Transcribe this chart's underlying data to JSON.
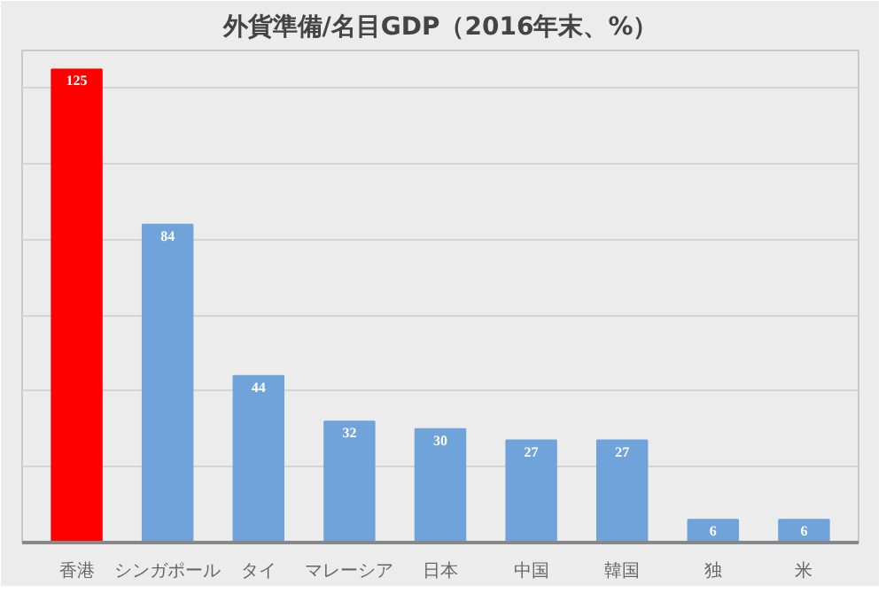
{
  "chart_data": {
    "type": "bar",
    "title": "外貨準備/名目GDP（2016年末、%）",
    "categories": [
      "香港",
      "シンガポール",
      "タイ",
      "マレーシア",
      "日本",
      "中国",
      "韓国",
      "独",
      "米"
    ],
    "values": [
      125,
      84,
      44,
      32,
      30,
      27,
      27,
      6,
      6
    ],
    "colors": [
      "#ff0000",
      "#6fa3d9",
      "#6fa3d9",
      "#6fa3d9",
      "#6fa3d9",
      "#6fa3d9",
      "#6fa3d9",
      "#6fa3d9",
      "#6fa3d9"
    ],
    "ylim": [
      0,
      130
    ],
    "yticks": [
      {
        "value": 0,
        "label": null
      },
      {
        "value": 20,
        "label": null
      },
      {
        "value": 40,
        "label": null
      },
      {
        "value": 60,
        "label": null
      },
      {
        "value": 80,
        "label": null
      },
      {
        "value": 100,
        "label": null
      },
      {
        "value": 120,
        "label": null
      }
    ],
    "grid": "y",
    "data_labels": true,
    "tick_labels": "x"
  }
}
